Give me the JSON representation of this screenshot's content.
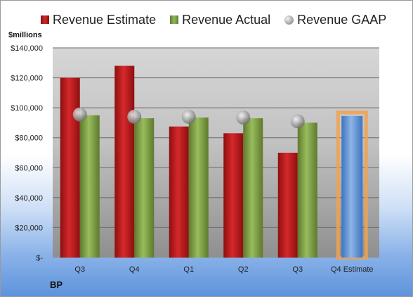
{
  "legend": {
    "estimate": "Revenue Estimate",
    "actual": "Revenue Actual",
    "gaap": "Revenue GAAP"
  },
  "brand": "BP",
  "chart_data": {
    "type": "bar",
    "ylabel": "$millions",
    "ylim": [
      0,
      140000
    ],
    "y_ticks": [
      0,
      20000,
      40000,
      60000,
      80000,
      100000,
      120000,
      140000
    ],
    "y_tick_labels": [
      "$-",
      "$20,000",
      "$40,000",
      "$60,000",
      "$80,000",
      "$100,000",
      "$120,000",
      "$140,000"
    ],
    "categories": [
      "Q3",
      "Q4",
      "Q1",
      "Q2",
      "Q3",
      "Q4 Estimate"
    ],
    "series": [
      {
        "name": "Revenue Estimate",
        "kind": "bar",
        "color": "#c0191b",
        "values": [
          120000,
          128000,
          87500,
          83000,
          70000,
          null
        ]
      },
      {
        "name": "Revenue Actual",
        "kind": "bar",
        "color": "#7f9f45",
        "values": [
          95000,
          93000,
          93500,
          93000,
          90000,
          null
        ]
      },
      {
        "name": "Revenue GAAP",
        "kind": "marker",
        "color": "#a6a6a6",
        "values": [
          95500,
          94000,
          94000,
          93500,
          91000,
          null
        ]
      },
      {
        "name": "Q4 Estimate",
        "kind": "bar",
        "color": "#5f93d6",
        "highlight": "#f2a14d",
        "values": [
          null,
          null,
          null,
          null,
          null,
          94500
        ]
      }
    ],
    "grid": true
  }
}
